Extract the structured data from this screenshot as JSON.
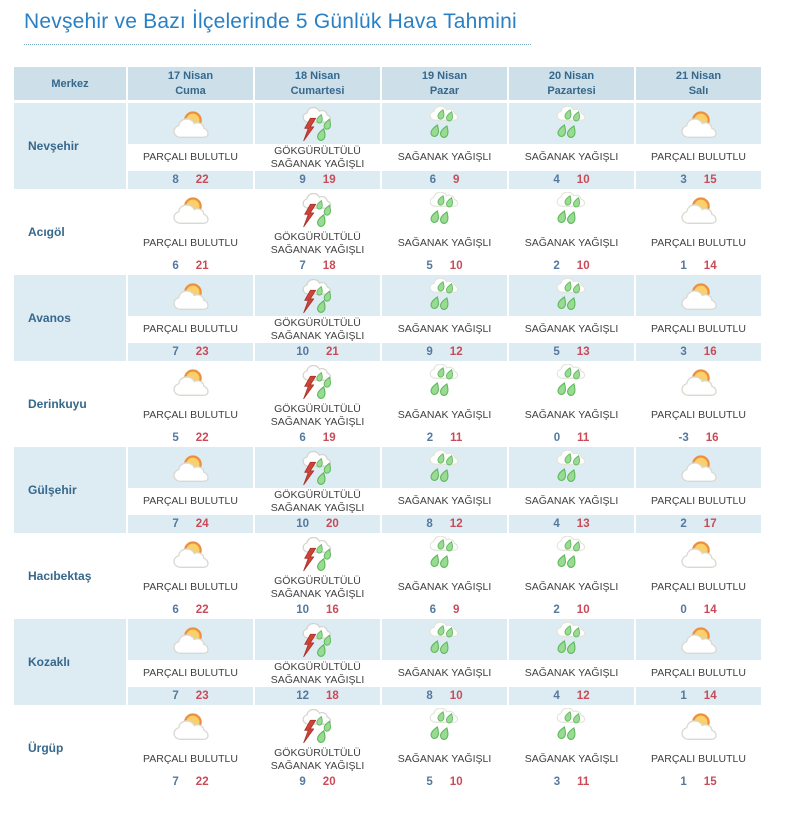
{
  "page": {
    "title": "Nevşehir ve Bazı İlçelerinde 5 Günlük Hava Tahmini"
  },
  "theme": {
    "title_color": "#2a80c4",
    "header_bg": "#cddfe9",
    "header_text": "#36688c",
    "row_band_bg": "#ddebf3",
    "condition_text": "#3f3f3f",
    "min_temp_color": "#54799f",
    "max_temp_color": "#c94b58"
  },
  "table": {
    "corner_header": "Merkez",
    "day_headers": [
      {
        "date": "17 Nisan",
        "weekday": "Cuma"
      },
      {
        "date": "18 Nisan",
        "weekday": "Cumartesi"
      },
      {
        "date": "19 Nisan",
        "weekday": "Pazar"
      },
      {
        "date": "20 Nisan",
        "weekday": "Pazartesi"
      },
      {
        "date": "21 Nisan",
        "weekday": "Salı"
      }
    ],
    "rows": [
      {
        "name": "Nevşehir",
        "cells": [
          {
            "icon": "partly-cloudy",
            "condition": "PARÇALI BULUTLU",
            "min": "8",
            "max": "22"
          },
          {
            "icon": "thunderstorm",
            "condition": "GÖKGÜRÜLTÜLÜ SAĞANAK YAĞIŞLI",
            "min": "9",
            "max": "19"
          },
          {
            "icon": "rain-showers",
            "condition": "SAĞANAK YAĞIŞLI",
            "min": "6",
            "max": "9"
          },
          {
            "icon": "rain-showers",
            "condition": "SAĞANAK YAĞIŞLI",
            "min": "4",
            "max": "10"
          },
          {
            "icon": "partly-cloudy",
            "condition": "PARÇALI BULUTLU",
            "min": "3",
            "max": "15"
          }
        ]
      },
      {
        "name": "Acıgöl",
        "cells": [
          {
            "icon": "partly-cloudy",
            "condition": "PARÇALI BULUTLU",
            "min": "6",
            "max": "21"
          },
          {
            "icon": "thunderstorm",
            "condition": "GÖKGÜRÜLTÜLÜ SAĞANAK YAĞIŞLI",
            "min": "7",
            "max": "18"
          },
          {
            "icon": "rain-showers",
            "condition": "SAĞANAK YAĞIŞLI",
            "min": "5",
            "max": "10"
          },
          {
            "icon": "rain-showers",
            "condition": "SAĞANAK YAĞIŞLI",
            "min": "2",
            "max": "10"
          },
          {
            "icon": "partly-cloudy",
            "condition": "PARÇALI BULUTLU",
            "min": "1",
            "max": "14"
          }
        ]
      },
      {
        "name": "Avanos",
        "cells": [
          {
            "icon": "partly-cloudy",
            "condition": "PARÇALI BULUTLU",
            "min": "7",
            "max": "23"
          },
          {
            "icon": "thunderstorm",
            "condition": "GÖKGÜRÜLTÜLÜ SAĞANAK YAĞIŞLI",
            "min": "10",
            "max": "21"
          },
          {
            "icon": "rain-showers",
            "condition": "SAĞANAK YAĞIŞLI",
            "min": "9",
            "max": "12"
          },
          {
            "icon": "rain-showers",
            "condition": "SAĞANAK YAĞIŞLI",
            "min": "5",
            "max": "13"
          },
          {
            "icon": "partly-cloudy",
            "condition": "PARÇALI BULUTLU",
            "min": "3",
            "max": "16"
          }
        ]
      },
      {
        "name": "Derinkuyu",
        "cells": [
          {
            "icon": "partly-cloudy",
            "condition": "PARÇALI BULUTLU",
            "min": "5",
            "max": "22"
          },
          {
            "icon": "thunderstorm",
            "condition": "GÖKGÜRÜLTÜLÜ SAĞANAK YAĞIŞLI",
            "min": "6",
            "max": "19"
          },
          {
            "icon": "rain-showers",
            "condition": "SAĞANAK YAĞIŞLI",
            "min": "2",
            "max": "11"
          },
          {
            "icon": "rain-showers",
            "condition": "SAĞANAK YAĞIŞLI",
            "min": "0",
            "max": "11"
          },
          {
            "icon": "partly-cloudy",
            "condition": "PARÇALI BULUTLU",
            "min": "-3",
            "max": "16"
          }
        ]
      },
      {
        "name": "Gülşehir",
        "cells": [
          {
            "icon": "partly-cloudy",
            "condition": "PARÇALI BULUTLU",
            "min": "7",
            "max": "24"
          },
          {
            "icon": "thunderstorm",
            "condition": "GÖKGÜRÜLTÜLÜ SAĞANAK YAĞIŞLI",
            "min": "10",
            "max": "20"
          },
          {
            "icon": "rain-showers",
            "condition": "SAĞANAK YAĞIŞLI",
            "min": "8",
            "max": "12"
          },
          {
            "icon": "rain-showers",
            "condition": "SAĞANAK YAĞIŞLI",
            "min": "4",
            "max": "13"
          },
          {
            "icon": "partly-cloudy",
            "condition": "PARÇALI BULUTLU",
            "min": "2",
            "max": "17"
          }
        ]
      },
      {
        "name": "Hacıbektaş",
        "cells": [
          {
            "icon": "partly-cloudy",
            "condition": "PARÇALI BULUTLU",
            "min": "6",
            "max": "22"
          },
          {
            "icon": "thunderstorm",
            "condition": "GÖKGÜRÜLTÜLÜ SAĞANAK YAĞIŞLI",
            "min": "10",
            "max": "16"
          },
          {
            "icon": "rain-showers",
            "condition": "SAĞANAK YAĞIŞLI",
            "min": "6",
            "max": "9"
          },
          {
            "icon": "rain-showers",
            "condition": "SAĞANAK YAĞIŞLI",
            "min": "2",
            "max": "10"
          },
          {
            "icon": "partly-cloudy",
            "condition": "PARÇALI BULUTLU",
            "min": "0",
            "max": "14"
          }
        ]
      },
      {
        "name": "Kozaklı",
        "cells": [
          {
            "icon": "partly-cloudy",
            "condition": "PARÇALI BULUTLU",
            "min": "7",
            "max": "23"
          },
          {
            "icon": "thunderstorm",
            "condition": "GÖKGÜRÜLTÜLÜ SAĞANAK YAĞIŞLI",
            "min": "12",
            "max": "18"
          },
          {
            "icon": "rain-showers",
            "condition": "SAĞANAK YAĞIŞLI",
            "min": "8",
            "max": "10"
          },
          {
            "icon": "rain-showers",
            "condition": "SAĞANAK YAĞIŞLI",
            "min": "4",
            "max": "12"
          },
          {
            "icon": "partly-cloudy",
            "condition": "PARÇALI BULUTLU",
            "min": "1",
            "max": "14"
          }
        ]
      },
      {
        "name": "Ürgüp",
        "cells": [
          {
            "icon": "partly-cloudy",
            "condition": "PARÇALI BULUTLU",
            "min": "7",
            "max": "22"
          },
          {
            "icon": "thunderstorm",
            "condition": "GÖKGÜRÜLTÜLÜ SAĞANAK YAĞIŞLI",
            "min": "9",
            "max": "20"
          },
          {
            "icon": "rain-showers",
            "condition": "SAĞANAK YAĞIŞLI",
            "min": "5",
            "max": "10"
          },
          {
            "icon": "rain-showers",
            "condition": "SAĞANAK YAĞIŞLI",
            "min": "3",
            "max": "11"
          },
          {
            "icon": "partly-cloudy",
            "condition": "PARÇALI BULUTLU",
            "min": "1",
            "max": "15"
          }
        ]
      }
    ]
  }
}
